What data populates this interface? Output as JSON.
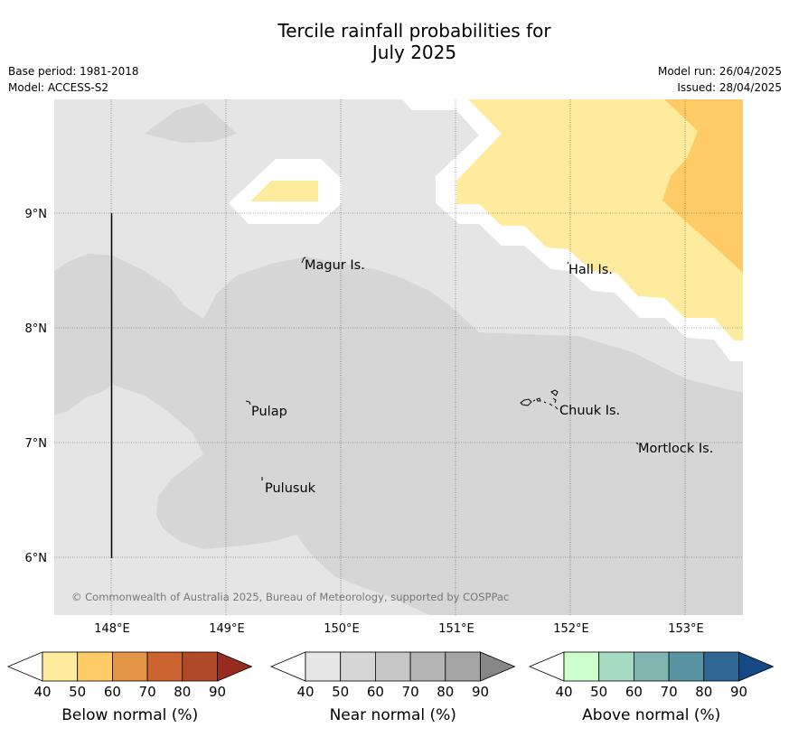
{
  "title_line1": "Tercile rainfall probabilities for",
  "title_line2": "July 2025",
  "meta_left": {
    "base_period": "Base period: 1981-2018",
    "model": "Model: ACCESS-S2"
  },
  "meta_right": {
    "model_run": "Model run: 26/04/2025",
    "issued": "Issued: 28/04/2025"
  },
  "map": {
    "lon_ticks": [
      "148°E",
      "149°E",
      "150°E",
      "151°E",
      "152°E",
      "153°E"
    ],
    "lat_ticks": [
      "9°N",
      "8°N",
      "7°N",
      "6°N"
    ],
    "places": [
      "Magur Is.",
      "Hall Is.",
      "Pulap",
      "Chuuk Is.",
      "Mortlock Is.",
      "Pulusuk"
    ],
    "copyright": "© Commonwealth of Australia 2025, Bureau of Meteorology, supported by COSPPac",
    "colors": {
      "near_40_50": "#e5e5e5",
      "near_50_60": "#d6d6d6",
      "below_40_50": "#ffeb9e",
      "below_50_60": "#ffcb66",
      "no_data": "#ffffff"
    }
  },
  "legends": [
    {
      "label": "Below normal (%)",
      "ticks": [
        "40",
        "50",
        "60",
        "70",
        "80",
        "90"
      ],
      "colors": [
        "#ffeb9e",
        "#ffcb66",
        "#e39444",
        "#cc6331",
        "#b14a28",
        "#962b1e"
      ]
    },
    {
      "label": "Near normal (%)",
      "ticks": [
        "40",
        "50",
        "60",
        "70",
        "80",
        "90"
      ],
      "colors": [
        "#e6e6e6",
        "#d6d6d6",
        "#c6c6c6",
        "#b4b4b4",
        "#a5a5a5",
        "#878787"
      ]
    },
    {
      "label": "Above normal (%)",
      "ticks": [
        "40",
        "50",
        "60",
        "70",
        "80",
        "90"
      ],
      "colors": [
        "#ccffcc",
        "#a5dbc0",
        "#80b6b0",
        "#5a94a2",
        "#316795",
        "#144985"
      ]
    }
  ]
}
